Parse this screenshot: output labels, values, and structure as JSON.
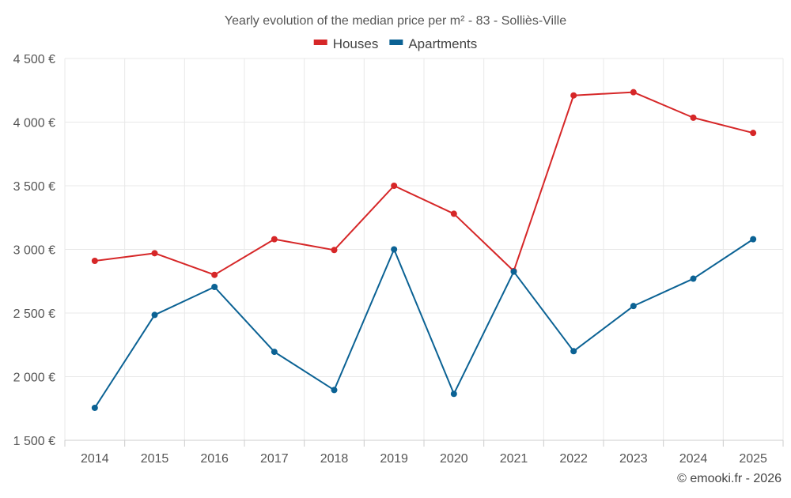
{
  "chart_data": {
    "type": "line",
    "title": "Yearly evolution of the median price per m² - 83 - Solliès-Ville",
    "categories": [
      "2014",
      "2015",
      "2016",
      "2017",
      "2018",
      "2019",
      "2020",
      "2021",
      "2022",
      "2023",
      "2024",
      "2025"
    ],
    "series": [
      {
        "name": "Houses",
        "color": "#d62728",
        "values": [
          2910,
          2970,
          2800,
          3080,
          2995,
          3500,
          3280,
          2830,
          4210,
          4235,
          4035,
          3915
        ]
      },
      {
        "name": "Apartments",
        "color": "#0b6294",
        "values": [
          1755,
          2485,
          2705,
          2195,
          1895,
          3000,
          1865,
          2825,
          2200,
          2555,
          2770,
          3080
        ]
      }
    ],
    "ylim": [
      1500,
      4500
    ],
    "yticks": [
      1500,
      2000,
      2500,
      3000,
      3500,
      4000,
      4500
    ],
    "ytick_labels": [
      "1 500 €",
      "2 000 €",
      "2 500 €",
      "3 000 €",
      "3 500 €",
      "4 000 €",
      "4 500 €"
    ],
    "grid": true,
    "legend_position": "top-center",
    "xlabel": "",
    "ylabel": ""
  },
  "credit": "© emooki.fr - 2026"
}
